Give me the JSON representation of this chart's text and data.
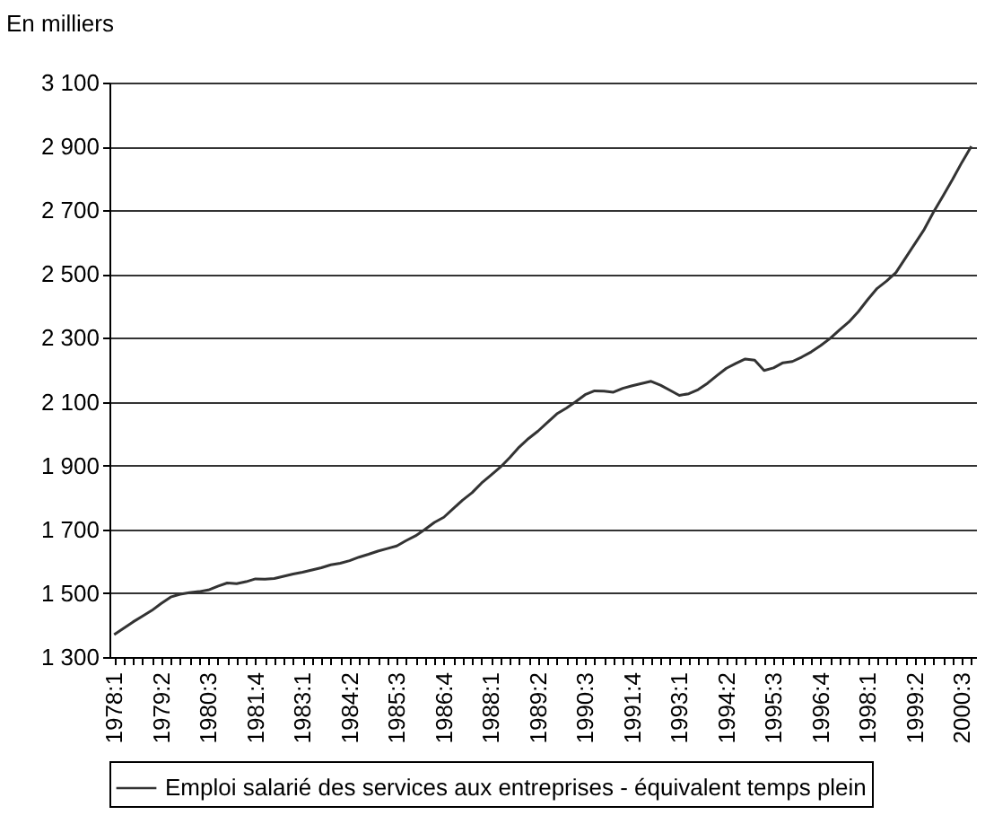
{
  "chart_data": {
    "type": "line",
    "ylabel": "En milliers",
    "categories": [
      "1978:1",
      null,
      null,
      null,
      null,
      "1979:2",
      null,
      null,
      null,
      null,
      "1980:3",
      null,
      null,
      null,
      null,
      "1981:4",
      null,
      null,
      null,
      null,
      "1983:1",
      null,
      null,
      null,
      null,
      "1984:2",
      null,
      null,
      null,
      null,
      "1985:3",
      null,
      null,
      null,
      null,
      "1986:4",
      null,
      null,
      null,
      null,
      "1988:1",
      null,
      null,
      null,
      null,
      "1989:2",
      null,
      null,
      null,
      null,
      "1990:3",
      null,
      null,
      null,
      null,
      "1991:4",
      null,
      null,
      null,
      null,
      "1993:1",
      null,
      null,
      null,
      null,
      "1994:2",
      null,
      null,
      null,
      null,
      "1995:3",
      null,
      null,
      null,
      null,
      "1996:4",
      null,
      null,
      null,
      null,
      "1998:1",
      null,
      null,
      null,
      null,
      "1999:2",
      null,
      null,
      null,
      null,
      "2000:3",
      null
    ],
    "series": [
      {
        "name": "Emploi salarié des services aux entreprises - équivalent temps plein",
        "color": "#333333",
        "values": [
          1370,
          1390,
          1410,
          1428,
          1446,
          1468,
          1488,
          1497,
          1502,
          1505,
          1510,
          1522,
          1532,
          1530,
          1536,
          1545,
          1544,
          1546,
          1553,
          1560,
          1566,
          1573,
          1580,
          1589,
          1594,
          1602,
          1613,
          1622,
          1632,
          1640,
          1648,
          1665,
          1680,
          1700,
          1722,
          1738,
          1765,
          1792,
          1815,
          1845,
          1870,
          1895,
          1925,
          1958,
          1985,
          2008,
          2035,
          2062,
          2080,
          2100,
          2122,
          2134,
          2133,
          2130,
          2142,
          2150,
          2157,
          2164,
          2152,
          2136,
          2120,
          2125,
          2138,
          2158,
          2182,
          2205,
          2220,
          2234,
          2230,
          2198,
          2206,
          2222,
          2226,
          2240,
          2256,
          2276,
          2298,
          2325,
          2350,
          2382,
          2420,
          2455,
          2478,
          2505,
          2550,
          2595,
          2640,
          2695,
          2745,
          2796,
          2850,
          2900
        ]
      }
    ],
    "ylim": [
      1300,
      3100
    ],
    "yticks": [
      1300,
      1500,
      1700,
      1900,
      2100,
      2300,
      2500,
      2700,
      2900,
      3100
    ],
    "grid": "y",
    "legend": "bottom"
  }
}
